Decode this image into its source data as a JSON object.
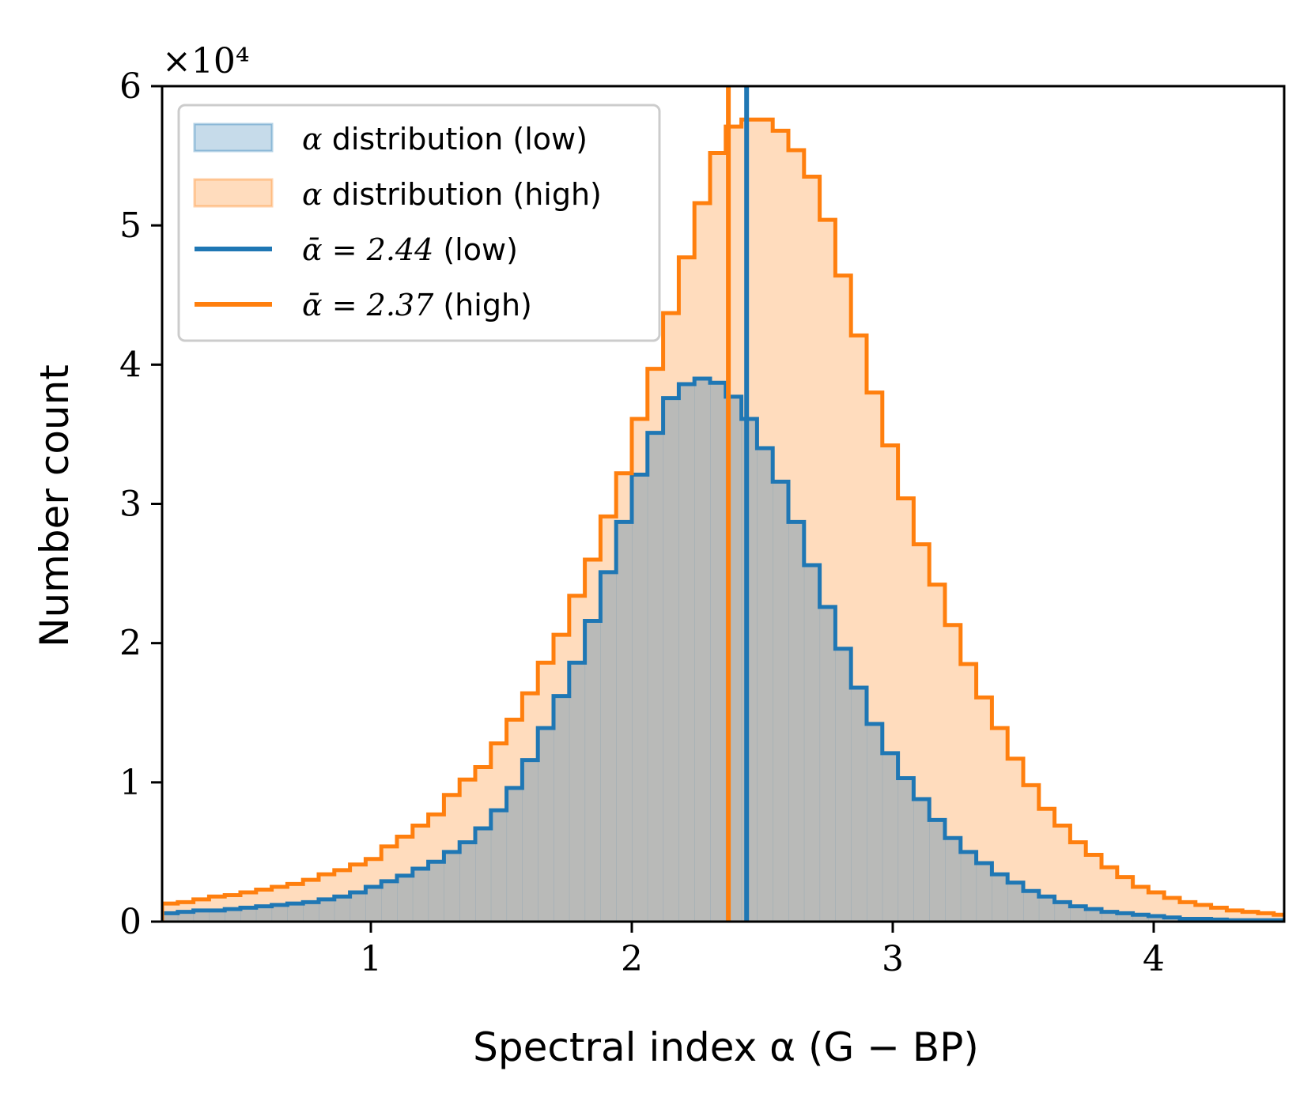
{
  "chart_data": {
    "type": "histogram",
    "title": "",
    "xlabel": "Spectral index α (G − BP)",
    "ylabel": "Number count",
    "y_multiplier": "×10⁴",
    "xlim": [
      0.2,
      4.5
    ],
    "ylim": [
      0,
      6
    ],
    "x_ticks": [
      1,
      2,
      3,
      4
    ],
    "x_tick_labels": [
      "1",
      "2",
      "3",
      "4"
    ],
    "y_ticks": [
      0,
      1,
      2,
      3,
      4,
      5,
      6
    ],
    "y_tick_labels": [
      "0",
      "1",
      "2",
      "3",
      "4",
      "5",
      "6"
    ],
    "bin_width": 0.06,
    "bins_start": 0.2,
    "series": [
      {
        "name": "α distribution (low)",
        "color": "#1f77b4",
        "fill": "#c6dbea",
        "values": [
          0.06,
          0.07,
          0.08,
          0.08,
          0.09,
          0.1,
          0.11,
          0.12,
          0.13,
          0.14,
          0.16,
          0.18,
          0.21,
          0.25,
          0.29,
          0.33,
          0.38,
          0.43,
          0.5,
          0.57,
          0.67,
          0.8,
          0.96,
          1.16,
          1.39,
          1.62,
          1.86,
          2.16,
          2.51,
          2.87,
          3.21,
          3.51,
          3.76,
          3.86,
          3.9,
          3.87,
          3.77,
          3.61,
          3.4,
          3.16,
          2.87,
          2.56,
          2.26,
          1.96,
          1.68,
          1.42,
          1.21,
          1.03,
          0.88,
          0.73,
          0.6,
          0.5,
          0.42,
          0.34,
          0.28,
          0.22,
          0.18,
          0.14,
          0.11,
          0.09,
          0.07,
          0.06,
          0.05,
          0.04,
          0.03,
          0.02,
          0.02,
          0.015,
          0.01,
          0.01,
          0.01,
          0.01
        ]
      },
      {
        "name": "α distribution (high)",
        "color": "#ff7f0e",
        "fill": "#ffdcbd",
        "values": [
          0.13,
          0.14,
          0.16,
          0.18,
          0.19,
          0.21,
          0.23,
          0.25,
          0.27,
          0.3,
          0.34,
          0.37,
          0.41,
          0.45,
          0.54,
          0.61,
          0.69,
          0.77,
          0.91,
          1.02,
          1.11,
          1.28,
          1.45,
          1.64,
          1.86,
          2.06,
          2.34,
          2.6,
          2.91,
          3.22,
          3.61,
          3.97,
          4.37,
          4.77,
          5.16,
          5.52,
          5.71,
          5.76,
          5.76,
          5.68,
          5.54,
          5.35,
          5.04,
          4.64,
          4.21,
          3.8,
          3.42,
          3.04,
          2.71,
          2.42,
          2.13,
          1.85,
          1.61,
          1.39,
          1.17,
          0.98,
          0.81,
          0.69,
          0.57,
          0.48,
          0.39,
          0.32,
          0.25,
          0.21,
          0.17,
          0.14,
          0.12,
          0.1,
          0.08,
          0.07,
          0.06,
          0.05
        ]
      }
    ],
    "mean_lines": [
      {
        "name": "ᾱ = 2.44 (low)",
        "label_math": "ᾱ = 2.44",
        "label_text": "(low)",
        "x": 2.44,
        "color": "#1f77b4"
      },
      {
        "name": "ᾱ = 2.37 (high)",
        "label_math": "ᾱ = 2.37",
        "label_text": "(high)",
        "x": 2.37,
        "color": "#ff7f0e"
      }
    ],
    "legend": {
      "position": "upper-left",
      "entries": [
        {
          "kind": "patch",
          "math": "α",
          "text": "distribution (low)"
        },
        {
          "kind": "patch",
          "math": "α",
          "text": "distribution (high)"
        },
        {
          "kind": "line",
          "math": "ᾱ = 2.44",
          "text": "(low)"
        },
        {
          "kind": "line",
          "math": "ᾱ = 2.37",
          "text": "(high)"
        }
      ]
    }
  }
}
